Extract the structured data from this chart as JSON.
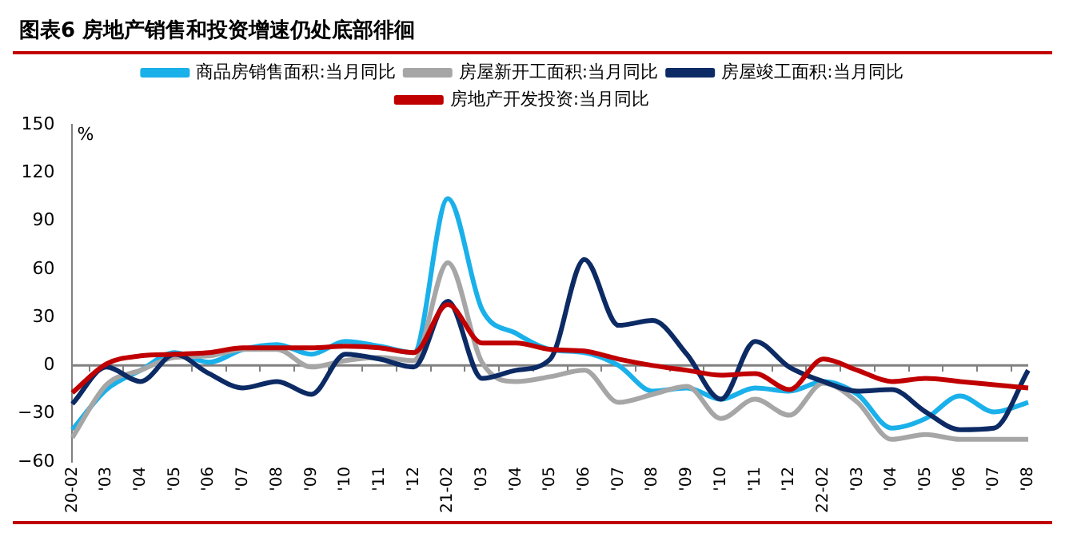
{
  "chart_data": {
    "type": "line",
    "title": "图表6 房地产销售和投资增速仍处底部徘徊",
    "ylabel": "%",
    "categories": [
      "20-02",
      "'03",
      "'04",
      "'05",
      "'06",
      "'07",
      "'08",
      "'09",
      "'10",
      "'11",
      "'12",
      "21-02",
      "'03",
      "'04",
      "'05",
      "'06",
      "'07",
      "'08",
      "'09",
      "'10",
      "'11",
      "'12",
      "22-02",
      "'03",
      "'04",
      "'05",
      "'06",
      "'07",
      "'08"
    ],
    "series": [
      {
        "name": "商品房销售面积:当月同比",
        "color": "#1ab0ea",
        "values": [
          -40,
          -15,
          -3,
          8,
          2,
          10,
          13,
          7,
          15,
          12,
          8,
          104,
          35,
          20,
          10,
          8,
          0,
          -16,
          -14,
          -21,
          -14,
          -16,
          -10,
          -18,
          -39,
          -33,
          -19,
          -29,
          -23
        ]
      },
      {
        "name": "房屋新开工面积:当月同比",
        "color": "#a6a6a6",
        "values": [
          -45,
          -12,
          -3,
          5,
          6,
          10,
          10,
          -1,
          3,
          5,
          3,
          64,
          2,
          -10,
          -7,
          -3,
          -23,
          -18,
          -13,
          -33,
          -21,
          -31,
          -11,
          -23,
          -46,
          -43,
          -46,
          -46,
          -46
        ]
      },
      {
        "name": "房屋竣工面积:当月同比",
        "color": "#0c2a64",
        "values": [
          -24,
          -1,
          -10,
          7,
          -5,
          -14,
          -10,
          -18,
          7,
          4,
          -1,
          40,
          -8,
          -3,
          4,
          66,
          25,
          28,
          7,
          -21,
          15,
          -1,
          -10,
          -16,
          -15,
          -29,
          -40,
          -39,
          -3
        ]
      },
      {
        "name": "房地产开发投资:当月同比",
        "color": "#c00000",
        "values": [
          -17,
          1,
          6,
          7,
          8,
          11,
          11,
          11,
          12,
          11,
          8,
          38,
          14,
          14,
          10,
          9,
          4,
          0,
          -3,
          -6,
          -5,
          -15,
          4,
          -3,
          -10,
          -8,
          -10,
          -12,
          -14
        ]
      }
    ],
    "ylim": [
      -60,
      150
    ],
    "yticks": [
      -60,
      -30,
      0,
      30,
      60,
      90,
      120,
      150
    ],
    "grid": false,
    "ref_lines": [
      {
        "axis": "y",
        "value": 0,
        "color": "#808080"
      }
    ],
    "legend": "top",
    "marker": "none",
    "line_style": "solid"
  }
}
